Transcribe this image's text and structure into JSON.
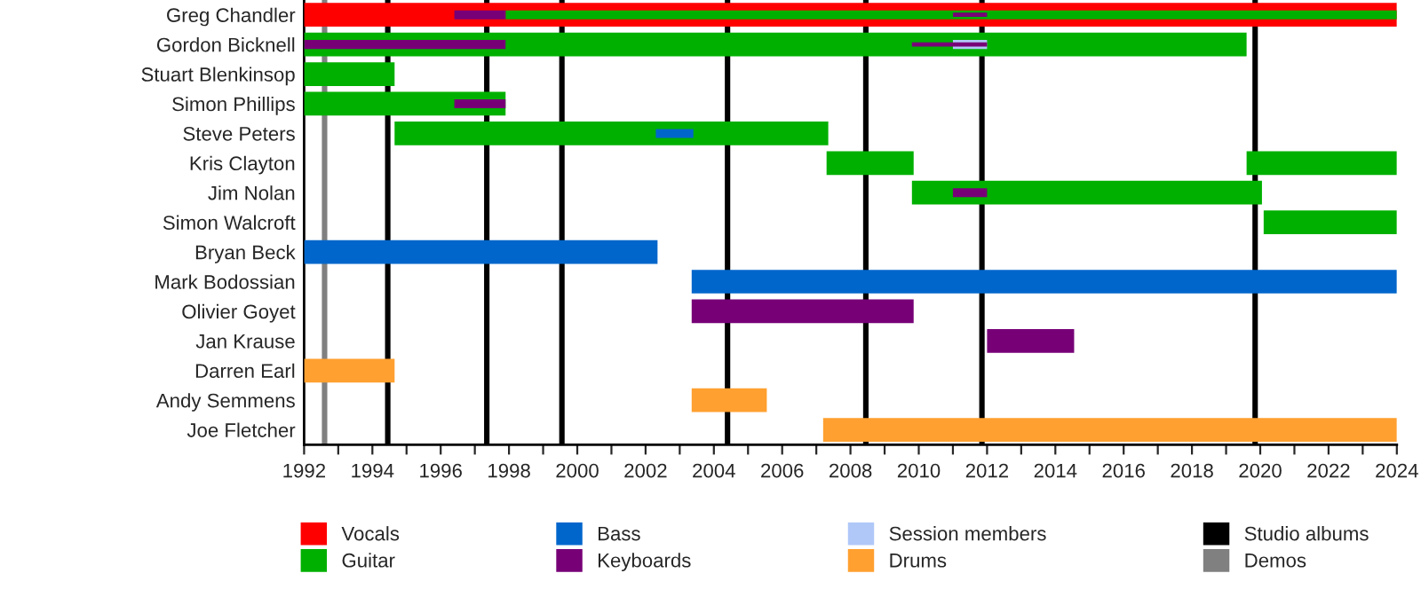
{
  "chart_data": {
    "type": "bar",
    "orientation": "horizontal",
    "categories": [
      "Greg Chandler",
      "Gordon Bicknell",
      "Stuart Blenkinsop",
      "Simon Phillips",
      "Steve Peters",
      "Kris Clayton",
      "Jim Nolan",
      "Simon Walcroft",
      "Bryan Beck",
      "Mark Bodossian",
      "Olivier Goyet",
      "Jan Krause",
      "Darren Earl",
      "Andy Semmens",
      "Joe Fletcher"
    ],
    "series": [
      {
        "name": "Vocals",
        "color": "#ff0000",
        "base": [
          1992,
          null,
          null,
          null,
          null,
          null,
          null,
          null,
          null,
          null,
          null,
          null,
          null,
          null,
          null
        ],
        "values": [
          32,
          null,
          null,
          null,
          null,
          null,
          null,
          null,
          null,
          null,
          null,
          null,
          null,
          null,
          null
        ]
      },
      {
        "name": "Guitar",
        "color": "#00b000",
        "base": [
          1997.9,
          1992,
          1992,
          1992,
          1994.65,
          2007.3,
          2009.8,
          2020.1,
          null,
          null,
          null,
          null,
          null,
          null,
          null
        ],
        "values": [
          26.1,
          27.6,
          2.65,
          5.9,
          12.7,
          2.55,
          10.25,
          3.9,
          null,
          null,
          null,
          null,
          null,
          null,
          null
        ]
      },
      {
        "color": "#00b000",
        "base": [
          null,
          null,
          null,
          null,
          null,
          2019.6,
          null,
          null,
          null,
          null,
          null,
          null,
          null,
          null,
          null
        ],
        "values": [
          null,
          null,
          null,
          null,
          null,
          4.4,
          null,
          null,
          null,
          null,
          null,
          null,
          null,
          null,
          null
        ]
      },
      {
        "name": "Bass",
        "color": "#0066cc",
        "base": [
          null,
          null,
          null,
          null,
          2002.3,
          null,
          null,
          null,
          1992,
          2003.35,
          null,
          null,
          null,
          null,
          null
        ],
        "values": [
          null,
          null,
          null,
          null,
          1.1,
          null,
          null,
          null,
          10.35,
          20.65,
          null,
          null,
          null,
          null,
          null
        ]
      },
      {
        "name": "Keyboards",
        "color": "#770077",
        "base": [
          1996.4,
          1992,
          null,
          1996.4,
          null,
          null,
          2011,
          null,
          null,
          null,
          2003.35,
          2012,
          null,
          null,
          null
        ],
        "values": [
          1.5,
          5.9,
          null,
          1.5,
          null,
          null,
          1,
          null,
          null,
          null,
          6.5,
          2.55,
          null,
          null,
          null
        ]
      },
      {
        "name": "Session members",
        "color": "#b0c8f8",
        "base": [
          null,
          2011,
          null,
          null,
          null,
          null,
          null,
          null,
          null,
          null,
          null,
          null,
          null,
          null,
          null
        ],
        "values": [
          null,
          1,
          null,
          null,
          null,
          null,
          null,
          null,
          null,
          null,
          null,
          null,
          null,
          null,
          null
        ]
      },
      {
        "color": "#770077",
        "base": [
          2011,
          2009.8,
          null,
          null,
          null,
          null,
          null,
          null,
          null,
          null,
          null,
          null,
          null,
          null,
          null
        ],
        "values": [
          1,
          2.2,
          null,
          null,
          null,
          null,
          null,
          null,
          null,
          null,
          null,
          null,
          null,
          null,
          null
        ]
      },
      {
        "name": "Drums",
        "color": "#ffa030",
        "base": [
          null,
          null,
          null,
          null,
          null,
          null,
          null,
          null,
          null,
          null,
          null,
          null,
          1992,
          2003.35,
          2007.2
        ],
        "values": [
          null,
          null,
          null,
          null,
          null,
          null,
          null,
          null,
          null,
          null,
          null,
          null,
          2.65,
          2.2,
          16.8
        ]
      }
    ],
    "ref_lines": [
      {
        "axis": "x",
        "value": 1994.45,
        "label": "Studio albums",
        "color": "#000000"
      },
      {
        "axis": "x",
        "value": 1997.35,
        "color": "#000000"
      },
      {
        "axis": "x",
        "value": 1999.55,
        "color": "#000000"
      },
      {
        "axis": "x",
        "value": 2004.4,
        "color": "#000000"
      },
      {
        "axis": "x",
        "value": 2008.45,
        "color": "#000000"
      },
      {
        "axis": "x",
        "value": 2011.85,
        "color": "#000000"
      },
      {
        "axis": "x",
        "value": 2019.85,
        "color": "#000000"
      },
      {
        "axis": "x",
        "value": 1992.6,
        "label": "Demos",
        "color": "#808080"
      }
    ],
    "xlim": [
      1992,
      2024
    ],
    "xticks": [
      1992,
      {
        "value": 1993,
        "label": null
      },
      1994,
      {
        "value": 1995,
        "label": null
      },
      1996,
      {
        "value": 1997,
        "label": null
      },
      1998,
      {
        "value": 1999,
        "label": null
      },
      2000,
      {
        "value": 2001,
        "label": null
      },
      2002,
      {
        "value": 2003,
        "label": null
      },
      2004,
      {
        "value": 2005,
        "label": null
      },
      2006,
      {
        "value": 2007,
        "label": null
      },
      2008,
      {
        "value": 2009,
        "label": null
      },
      2010,
      {
        "value": 2011,
        "label": null
      },
      2012,
      {
        "value": 2013,
        "label": null
      },
      2014,
      {
        "value": 2015,
        "label": null
      },
      2016,
      {
        "value": 2017,
        "label": null
      },
      2018,
      {
        "value": 2019,
        "label": null
      },
      2020,
      {
        "value": 2021,
        "label": null
      },
      2022,
      {
        "value": 2023,
        "label": null
      },
      2024
    ],
    "grid": false,
    "legend": "bottom"
  }
}
